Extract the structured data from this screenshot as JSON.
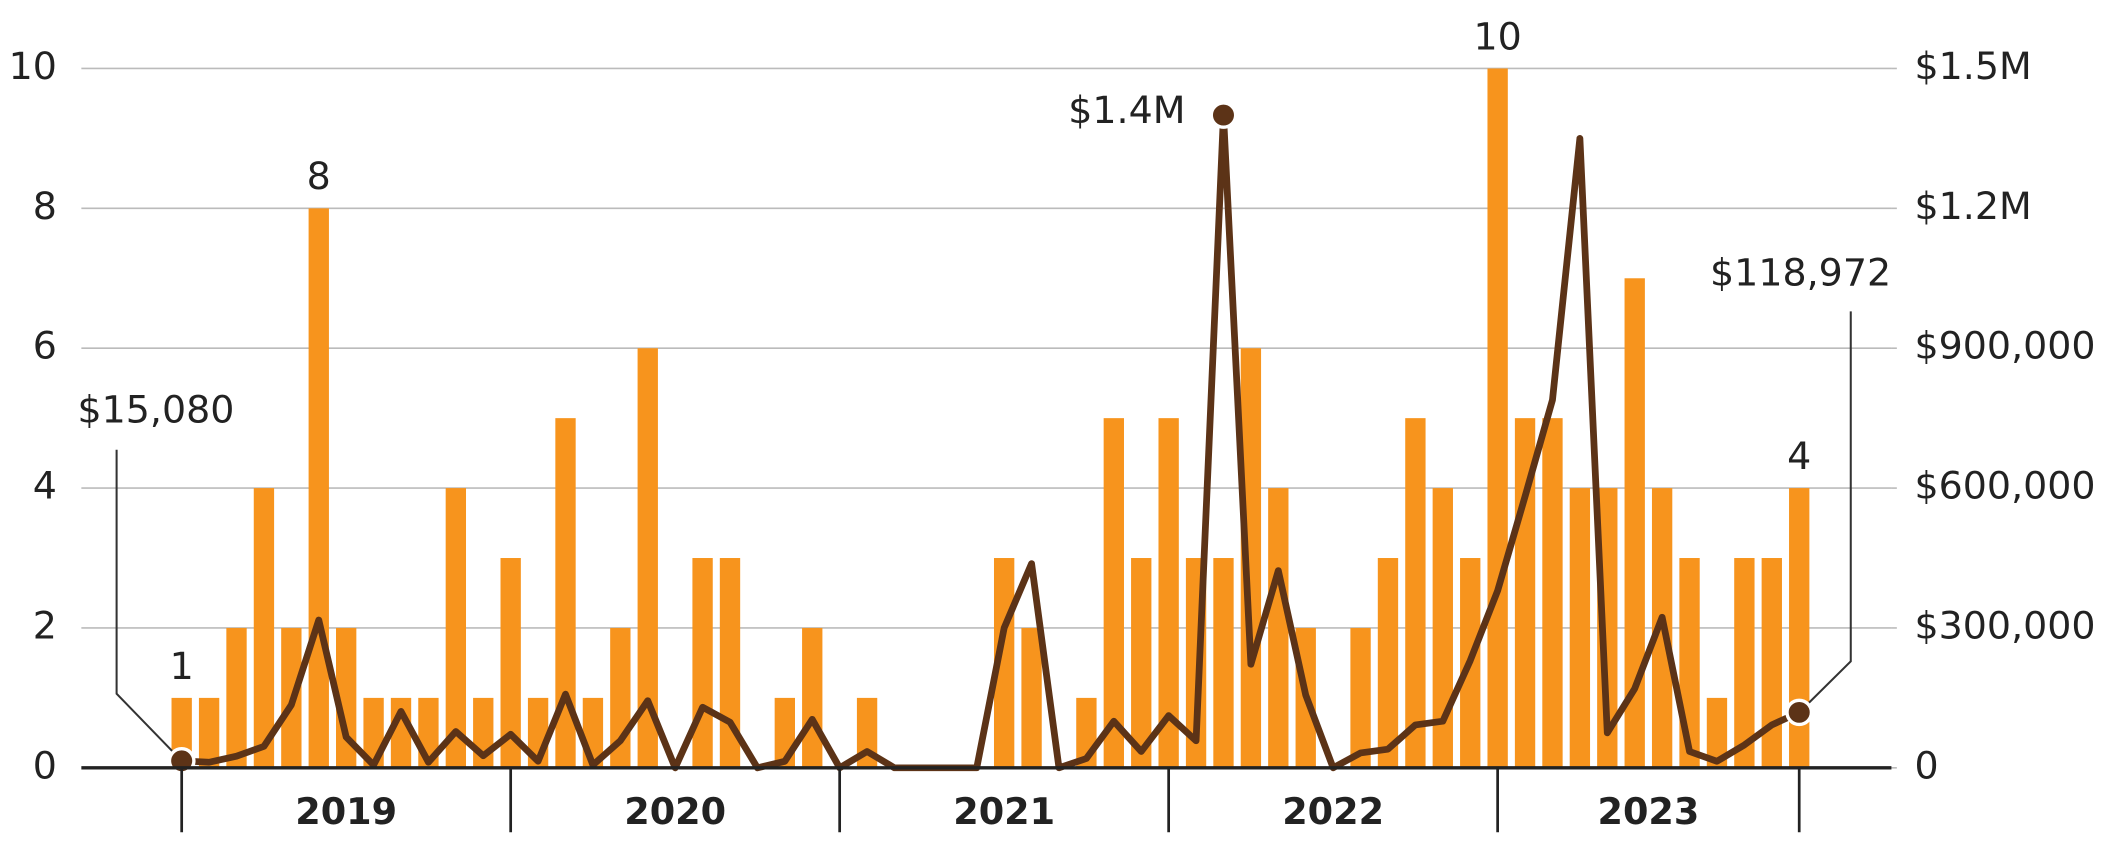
{
  "chart_data": {
    "type": "bar",
    "categories": [
      "2019",
      "2019",
      "2019",
      "2019",
      "2019",
      "2019",
      "2019",
      "2019",
      "2019",
      "2019",
      "2019",
      "2019",
      "2020",
      "2020",
      "2020",
      "2020",
      "2020",
      "2020",
      "2020",
      "2020",
      "2020",
      "2020",
      "2020",
      "2020",
      "2021",
      "2021",
      "2021",
      "2021",
      "2021",
      "2021",
      "2021",
      "2021",
      "2021",
      "2021",
      "2021",
      "2021",
      "2022",
      "2022",
      "2022",
      "2022",
      "2022",
      "2022",
      "2022",
      "2022",
      "2022",
      "2022",
      "2022",
      "2022",
      "2023",
      "2023",
      "2023",
      "2023",
      "2023",
      "2023",
      "2023",
      "2023",
      "2023",
      "2023",
      "2023",
      "2023"
    ],
    "series": [
      {
        "type": "bar",
        "color": "#f7941d",
        "values": [
          1,
          1,
          2,
          4,
          2,
          8,
          2,
          1,
          1,
          1,
          4,
          1,
          3,
          1,
          5,
          1,
          2,
          6,
          0,
          3,
          3,
          0,
          1,
          2,
          0,
          1,
          0,
          0,
          0,
          0,
          3,
          2,
          0,
          1,
          5,
          3,
          5,
          3,
          3,
          6,
          4,
          2,
          0,
          2,
          3,
          5,
          4,
          3,
          10,
          5,
          5,
          4,
          4,
          7,
          4,
          3,
          1,
          3,
          3,
          4
        ],
        "value_labels": [
          "1",
          null,
          null,
          null,
          null,
          "8",
          null,
          null,
          null,
          null,
          null,
          null,
          null,
          null,
          null,
          null,
          null,
          null,
          null,
          null,
          null,
          null,
          null,
          null,
          null,
          null,
          null,
          null,
          null,
          null,
          null,
          null,
          null,
          null,
          null,
          null,
          null,
          null,
          null,
          null,
          null,
          null,
          null,
          null,
          null,
          null,
          null,
          null,
          "10",
          null,
          null,
          null,
          null,
          null,
          null,
          null,
          null,
          null,
          null,
          "4"
        ]
      },
      {
        "type": "line",
        "axis": "y2",
        "color": "#5c3317",
        "values": [
          15080,
          12000,
          25000,
          46000,
          135000,
          317000,
          66000,
          6000,
          121000,
          12000,
          78000,
          26000,
          72000,
          14000,
          158000,
          6000,
          58000,
          144000,
          0,
          130000,
          98000,
          0,
          14000,
          104000,
          0,
          35000,
          0,
          0,
          0,
          0,
          300000,
          438000,
          0,
          20000,
          100000,
          35000,
          112000,
          58000,
          1400000,
          222000,
          423000,
          156000,
          0,
          32000,
          40000,
          92000,
          100000,
          230000,
          380000,
          582000,
          789000,
          1350000,
          75000,
          170000,
          323000,
          35000,
          14000,
          49000,
          92000,
          118972
        ],
        "value_labels": [
          "$15,080",
          null,
          null,
          null,
          null,
          null,
          null,
          null,
          null,
          null,
          null,
          null,
          null,
          null,
          null,
          null,
          null,
          null,
          null,
          null,
          null,
          null,
          null,
          null,
          null,
          null,
          null,
          null,
          null,
          null,
          null,
          null,
          null,
          null,
          null,
          null,
          null,
          null,
          "$1.4M",
          null,
          null,
          null,
          null,
          null,
          null,
          null,
          null,
          null,
          null,
          null,
          null,
          null,
          null,
          null,
          null,
          null,
          null,
          null,
          null,
          "$118,972"
        ]
      }
    ],
    "ylim": [
      0,
      10
    ],
    "yticks": [
      0,
      2,
      4,
      6,
      8,
      10
    ],
    "y2lim": [
      0,
      1500000
    ],
    "y2ticks": [
      0,
      {
        "value": 300000,
        "label": "$300,000"
      },
      {
        "value": 600000,
        "label": "$600,000"
      },
      {
        "value": 900000,
        "label": "$900,000"
      },
      {
        "value": 1200000,
        "label": "$1.2M"
      },
      {
        "value": 1500000,
        "label": "$1.5M"
      }
    ],
    "grid": true
  }
}
